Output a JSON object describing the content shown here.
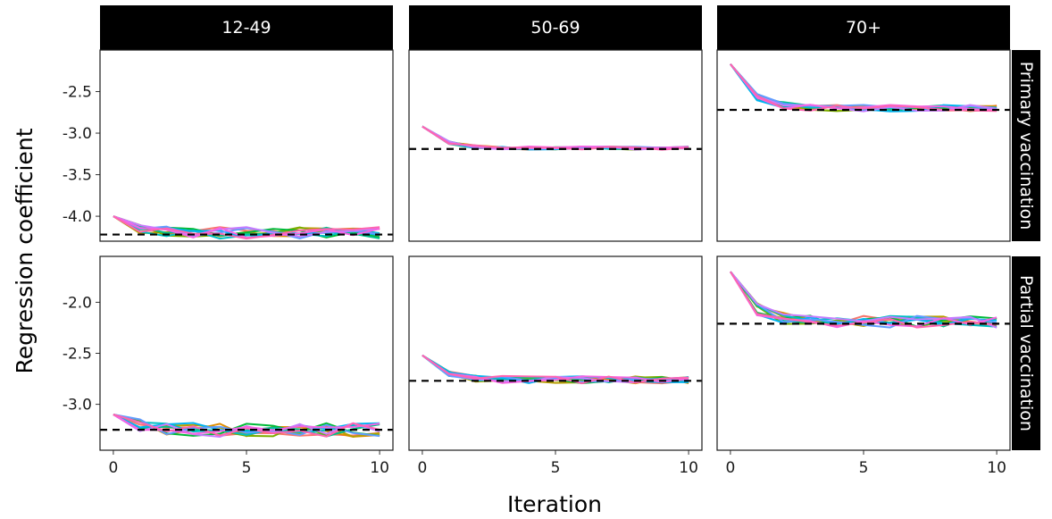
{
  "chart_data": {
    "type": "line",
    "ylabel": "Regression coefficient",
    "xlabel": "Iteration",
    "columns": [
      "12-49",
      "50-69",
      "70+"
    ],
    "rows": [
      "Primary vaccination",
      "Partial vaccination"
    ],
    "x_ticks": [
      "0",
      "5",
      "10"
    ],
    "xlim": [
      -0.5,
      10.5
    ],
    "row_axes": [
      {
        "ylim": [
          -4.3,
          -2.0
        ],
        "ticks": [
          -2.5,
          -3.0,
          -3.5,
          -4.0
        ],
        "tick_labels": [
          "-2.5",
          "-3.0",
          "-3.5",
          "-4.0"
        ]
      },
      {
        "ylim": [
          -3.45,
          -1.55
        ],
        "ticks": [
          -2.0,
          -2.5,
          -3.0
        ],
        "tick_labels": [
          "-2.0",
          "-2.5",
          "-3.0"
        ]
      }
    ],
    "series_colors": [
      "#F8766D",
      "#DE8C00",
      "#B79F00",
      "#7CAE00",
      "#00BA38",
      "#00C08B",
      "#00BFC4",
      "#00B4F0",
      "#619CFF",
      "#C77CFF",
      "#F564E3",
      "#FF64B0"
    ],
    "panels": [
      {
        "row": 0,
        "col": 0,
        "reference": -4.22,
        "start": -4.0,
        "converged": -4.2,
        "noise": 0.07
      },
      {
        "row": 0,
        "col": 1,
        "reference": -3.19,
        "start": -2.92,
        "converged": -3.18,
        "noise": 0.02
      },
      {
        "row": 0,
        "col": 2,
        "reference": -2.72,
        "start": -2.17,
        "converged": -2.7,
        "noise": 0.04
      },
      {
        "row": 1,
        "col": 0,
        "reference": -3.25,
        "start": -3.1,
        "converged": -3.25,
        "noise": 0.07
      },
      {
        "row": 1,
        "col": 1,
        "reference": -2.77,
        "start": -2.52,
        "converged": -2.76,
        "noise": 0.035
      },
      {
        "row": 1,
        "col": 2,
        "reference": -2.21,
        "start": -1.7,
        "converged": -2.19,
        "noise": 0.06
      }
    ]
  }
}
